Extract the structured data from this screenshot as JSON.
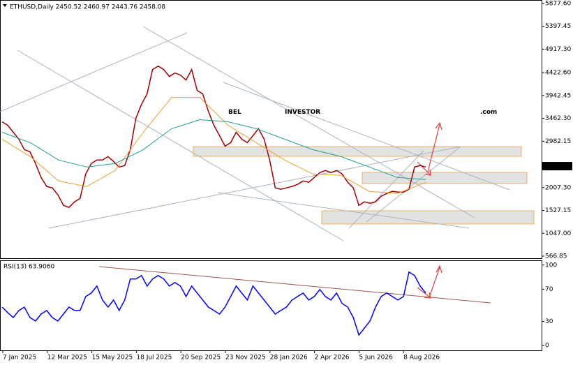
{
  "header": "ETHUSD,Daily  2450.52 2460.97 2443.76 2458.08",
  "watermark": {
    "brand_a": "BEL",
    "brand_b": "INVESTOR",
    "brand_c": ".com"
  },
  "chart_data": [
    {
      "type": "line",
      "ylim": [
        508,
        5950
      ],
      "yticks": [
        {
          "value": 5877.6,
          "label": "5877.60"
        },
        {
          "value": 5397.45,
          "label": "5397.45"
        },
        {
          "value": 4917.3,
          "label": "4917.30"
        },
        {
          "value": 4422.6,
          "label": "4422.60"
        },
        {
          "value": 3942.45,
          "label": "3942.45"
        },
        {
          "value": 3462.3,
          "label": "3462.30"
        },
        {
          "value": 2982.15,
          "label": "2982.15"
        },
        {
          "value": 2007.3,
          "label": "2007.30"
        },
        {
          "value": 1527.15,
          "label": "1527.15"
        },
        {
          "value": 1047,
          "label": "1047.00"
        },
        {
          "value": 566.85,
          "label": "566.85"
        }
      ],
      "last_price": 2458.08,
      "x_labels": [
        "7 Jan 2025",
        "12 Mar 2025",
        "15 May 2025",
        "18 Jul 2025",
        "20 Sep 2025",
        "23 Nov 2025",
        "28 Jan 2026",
        "2 Apr 2026",
        "5 Jun 2026",
        "8 Aug 2026"
      ],
      "series": [
        {
          "color": "#a00000",
          "values": [
            3391,
            3317,
            3171,
            3025,
            2805,
            2761,
            2513,
            2220,
            2030,
            2001,
            1854,
            1635,
            1591,
            1708,
            1781,
            2293,
            2513,
            2586,
            2586,
            2659,
            2557,
            2440,
            2469,
            2805,
            3464,
            3756,
            3976,
            4488,
            4561,
            4488,
            4342,
            4415,
            4371,
            4268,
            4488,
            4049,
            3976,
            3610,
            3317,
            3098,
            2879,
            2952,
            3171,
            3025,
            2952,
            3098,
            3245,
            3025,
            2586,
            2001,
            1972,
            2001,
            2030,
            2074,
            2147,
            2118,
            2220,
            2323,
            2367,
            2323,
            2367,
            2293,
            2118,
            2001,
            1635,
            1708,
            1679,
            1708,
            1825,
            1884,
            1928,
            1913,
            1913,
            1972,
            2440,
            2469,
            2440
          ]
        },
        {
          "color": "#e8a030",
          "values": [
            3025,
            2659,
            2147,
            2030,
            2367,
            3171,
            3902,
            3902,
            3317,
            2952,
            2586,
            2293,
            2264,
            1928,
            1884,
            2118
          ]
        },
        {
          "color": "#20a090",
          "values": [
            3171,
            2952,
            2586,
            2440,
            2513,
            2805,
            3245,
            3434,
            3391,
            3245,
            3025,
            2805,
            2659,
            2440,
            2220,
            2176
          ]
        }
      ]
    },
    {
      "type": "line",
      "title": "RSI(13) 63.9060",
      "ylim": [
        -6,
        105
      ],
      "yticks": [
        100,
        70,
        30,
        0
      ],
      "series": [
        {
          "color": "#0000ff",
          "values": [
            47.8,
            40.9,
            34.8,
            43.5,
            47.8,
            34.8,
            30.4,
            39.1,
            43.5,
            34.8,
            30.4,
            39.1,
            47.8,
            43.5,
            43.5,
            60.9,
            65.2,
            73.9,
            56.5,
            47.8,
            56.5,
            43.5,
            56.5,
            82.6,
            82.6,
            87.0,
            73.9,
            82.6,
            87.0,
            82.6,
            73.9,
            78.3,
            73.9,
            60.9,
            73.9,
            65.2,
            56.5,
            47.8,
            43.5,
            39.1,
            47.8,
            60.9,
            73.9,
            65.2,
            56.5,
            73.9,
            65.2,
            56.5,
            47.8,
            39.1,
            43.5,
            47.8,
            56.5,
            60.9,
            65.2,
            56.5,
            60.9,
            69.6,
            60.9,
            56.5,
            65.2,
            52.2,
            47.8,
            34.8,
            13.0,
            21.7,
            30.4,
            47.8,
            60.9,
            65.2,
            60.9,
            56.5,
            60.9,
            91.3,
            87.0,
            73.9,
            65.2
          ]
        }
      ]
    }
  ]
}
